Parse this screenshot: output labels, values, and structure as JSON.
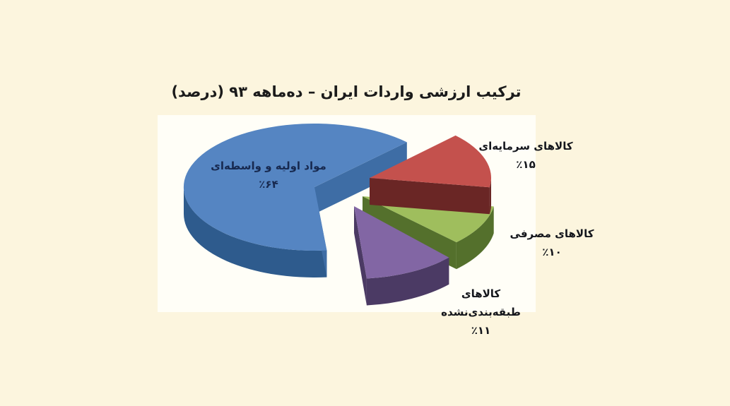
{
  "page": {
    "background_color": "#fcf5de",
    "plot_background_color": "#fffef7"
  },
  "header": {
    "title": "ترکیب ارزشی واردات ایران – ده‌ماهه ۹۳ (درصد)",
    "title_color": "#1b1b1b"
  },
  "chart_data": {
    "type": "pie",
    "style": "3d-exploded",
    "title": "ترکیب ارزشی واردات ایران – ده‌ماهه ۹۳ (درصد)",
    "values_unit": "درصد",
    "legend": false,
    "start_angle_deg": 45,
    "direction": "clockwise",
    "slices": [
      {
        "name": "raw-intermediate-materials",
        "label": "مواد اولیه و واسطه‌ای",
        "label_lines": [
          "مواد اولیه و واسطه‌ای"
        ],
        "value": 64,
        "pct_text": "٪۶۴",
        "color": "#5585c2",
        "side_color": "#2e5b8d"
      },
      {
        "name": "capital-goods",
        "label": "کالاهای سرمایه‌ای",
        "label_lines": [
          "کالاهای سرمایه‌ای"
        ],
        "value": 15,
        "pct_text": "٪۱۵",
        "color": "#c4514d",
        "side_color": "#6a2625"
      },
      {
        "name": "consumer-goods",
        "label": "کالاهای مصرفی",
        "label_lines": [
          "کالاهای مصرفی"
        ],
        "value": 10,
        "pct_text": "٪۱۰",
        "color": "#9fbe5d",
        "side_color": "#54702c"
      },
      {
        "name": "unclassified-goods",
        "label": "کالاهای طبقه‌بندی‌نشده",
        "label_lines": [
          "کالاهای",
          "طبقه‌بندی‌نشده"
        ],
        "value": 11,
        "pct_text": "٪۱۱",
        "color": "#8266a4",
        "side_color": "#4b3a64"
      }
    ]
  }
}
